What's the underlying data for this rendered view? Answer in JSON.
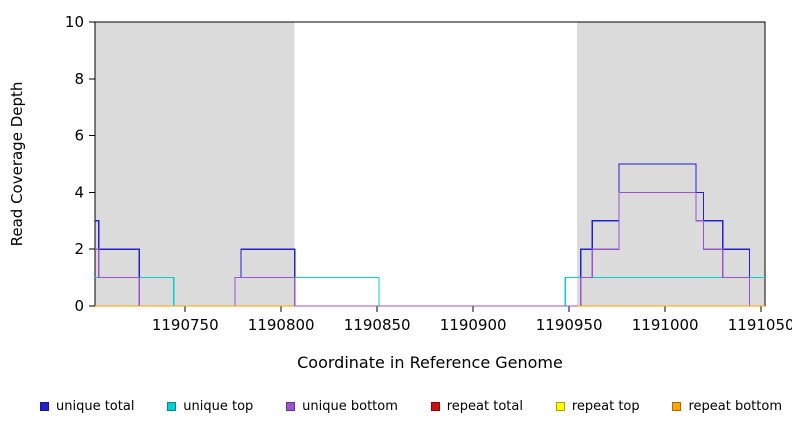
{
  "figure": {
    "background": "#FFFFFF",
    "axis_color": "#000000",
    "text_color": "#000000",
    "region_fill": "#DBDBDB"
  },
  "chart_data": {
    "type": "line",
    "subtype": "step-coverage-plot",
    "title": "",
    "xlabel": "Coordinate in Reference Genome",
    "ylabel": "Read Coverage Depth",
    "x_domain": [
      1190703,
      1191052
    ],
    "y_domain": [
      0,
      10
    ],
    "x_ticks": [
      1190750,
      1190800,
      1190850,
      1190900,
      1190950,
      1191000,
      1191050
    ],
    "y_ticks": [
      0,
      2,
      4,
      6,
      8,
      10
    ],
    "grid": false,
    "legend_position": "bottom",
    "shaded_regions": [
      {
        "label": "repeat-region-left",
        "from": 1190703,
        "to": 1190807
      },
      {
        "label": "repeat-region-right",
        "from": 1190954,
        "to": 1191052
      }
    ],
    "series": [
      {
        "name": "unique total",
        "color": "#2222CC",
        "segments": [
          [
            [
              1190703,
              3
            ],
            [
              1190705,
              2
            ],
            [
              1190726,
              1
            ],
            [
              1190744,
              0
            ],
            [
              1190776,
              1
            ],
            [
              1190779,
              2
            ],
            [
              1190807,
              1
            ],
            [
              1190851,
              0
            ],
            [
              1190948,
              1
            ],
            [
              1190956,
              2
            ],
            [
              1190962,
              3
            ],
            [
              1190976,
              5
            ],
            [
              1191016,
              4
            ],
            [
              1191020,
              3
            ],
            [
              1191030,
              2
            ],
            [
              1191044,
              1
            ],
            [
              1191052,
              1
            ]
          ]
        ]
      },
      {
        "name": "unique top",
        "color": "#00CED1",
        "segments": [
          [
            [
              1190703,
              1
            ],
            [
              1190744,
              0
            ],
            [
              1190807,
              1
            ],
            [
              1190851,
              0
            ],
            [
              1190948,
              1
            ],
            [
              1191052,
              1
            ]
          ]
        ]
      },
      {
        "name": "unique bottom",
        "color": "#9955CC",
        "segments": [
          [
            [
              1190703,
              2
            ],
            [
              1190705,
              1
            ],
            [
              1190726,
              0
            ],
            [
              1190776,
              1
            ],
            [
              1190807,
              0
            ],
            [
              1190956,
              1
            ],
            [
              1190962,
              2
            ],
            [
              1190976,
              4
            ],
            [
              1191016,
              3
            ],
            [
              1191020,
              2
            ],
            [
              1191030,
              1
            ],
            [
              1191044,
              0
            ],
            [
              1191052,
              0
            ]
          ]
        ]
      },
      {
        "name": "repeat total",
        "color": "#CC1111",
        "segments": [
          [
            [
              1190703,
              0
            ],
            [
              1190807,
              0
            ]
          ],
          [
            [
              1190954,
              0
            ],
            [
              1191052,
              0
            ]
          ]
        ]
      },
      {
        "name": "repeat top",
        "color": "#FFFF00",
        "segments": [
          [
            [
              1190703,
              0
            ],
            [
              1190807,
              0
            ]
          ],
          [
            [
              1190954,
              0
            ],
            [
              1191052,
              0
            ]
          ]
        ]
      },
      {
        "name": "repeat bottom",
        "color": "#FFA500",
        "segments": [
          [
            [
              1190703,
              0
            ],
            [
              1190807,
              0
            ]
          ],
          [
            [
              1190954,
              0
            ],
            [
              1191052,
              0
            ]
          ]
        ]
      }
    ]
  }
}
